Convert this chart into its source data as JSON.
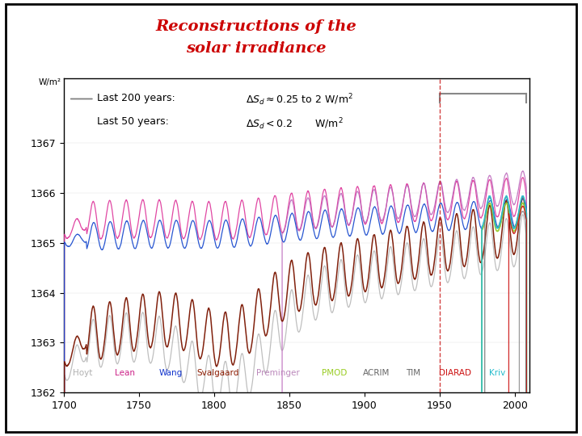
{
  "title_line1": "Reconstructions of the",
  "title_line2": "solar irradiance",
  "title_color": "#cc0000",
  "ylabel": "W/m²",
  "xlim": [
    1700,
    2010
  ],
  "ylim": [
    1362,
    1368.3
  ],
  "yticks": [
    1362,
    1363,
    1364,
    1365,
    1366,
    1367
  ],
  "xticks": [
    1700,
    1750,
    1800,
    1850,
    1900,
    1950,
    2000
  ],
  "dashed_vline_x": 1950,
  "background_color": "#ffffff",
  "legend_labels": [
    "Hoyt",
    "Lean",
    "Wang",
    "Svalgaard",
    "Preminger",
    "PMOD",
    "ACRIM",
    "TIM",
    "DIARAD",
    "Kriv"
  ],
  "legend_colors": [
    "#b0b0b0",
    "#cc2288",
    "#1133cc",
    "#8B1a00",
    "#bb88bb",
    "#99cc22",
    "#666666",
    "#666666",
    "#cc1111",
    "#22bbcc"
  ],
  "text_200": "Last 200 years:",
  "text_50": "Last 50 years:",
  "fig_bg": "#ffffff"
}
